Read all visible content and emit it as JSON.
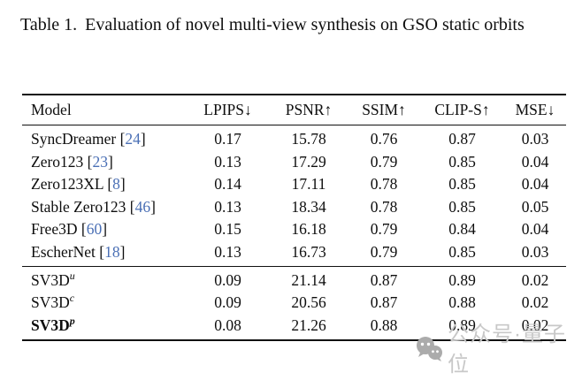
{
  "caption": {
    "label": "Table 1.",
    "text": "Evaluation of novel multi-view synthesis on GSO static orbits"
  },
  "table": {
    "headers": [
      "Model",
      "LPIPS↓",
      "PSNR↑",
      "SSIM↑",
      "CLIP-S↑",
      "MSE↓"
    ],
    "groups": [
      {
        "name": "baselines",
        "rows": [
          {
            "model": "SyncDreamer",
            "cite": "24",
            "sup": "",
            "bold_model": false,
            "values": [
              "0.17",
              "15.78",
              "0.76",
              "0.87",
              "0.03"
            ],
            "bold": [
              false,
              false,
              false,
              false,
              false
            ]
          },
          {
            "model": "Zero123",
            "cite": "23",
            "sup": "",
            "bold_model": false,
            "values": [
              "0.13",
              "17.29",
              "0.79",
              "0.85",
              "0.04"
            ],
            "bold": [
              false,
              false,
              false,
              false,
              false
            ]
          },
          {
            "model": "Zero123XL",
            "cite": "8",
            "sup": "",
            "bold_model": false,
            "values": [
              "0.14",
              "17.11",
              "0.78",
              "0.85",
              "0.04"
            ],
            "bold": [
              false,
              false,
              false,
              false,
              false
            ]
          },
          {
            "model": "Stable Zero123",
            "cite": "46",
            "sup": "",
            "bold_model": false,
            "values": [
              "0.13",
              "18.34",
              "0.78",
              "0.85",
              "0.05"
            ],
            "bold": [
              false,
              false,
              false,
              false,
              false
            ]
          },
          {
            "model": "Free3D",
            "cite": "60",
            "sup": "",
            "bold_model": false,
            "values": [
              "0.15",
              "16.18",
              "0.79",
              "0.84",
              "0.04"
            ],
            "bold": [
              false,
              false,
              false,
              false,
              false
            ]
          },
          {
            "model": "EscherNet",
            "cite": "18",
            "sup": "",
            "bold_model": false,
            "values": [
              "0.13",
              "16.73",
              "0.79",
              "0.85",
              "0.03"
            ],
            "bold": [
              false,
              false,
              false,
              false,
              false
            ]
          }
        ]
      },
      {
        "name": "sv3d-variants",
        "rows": [
          {
            "model": "SV3D",
            "cite": "",
            "sup": "u",
            "bold_model": false,
            "values": [
              "0.09",
              "21.14",
              "0.87",
              "0.89",
              "0.02"
            ],
            "bold": [
              false,
              false,
              false,
              true,
              true
            ]
          },
          {
            "model": "SV3D",
            "cite": "",
            "sup": "c",
            "bold_model": false,
            "values": [
              "0.09",
              "20.56",
              "0.87",
              "0.88",
              "0.02"
            ],
            "bold": [
              false,
              false,
              false,
              false,
              true
            ]
          },
          {
            "model": "SV3D",
            "cite": "",
            "sup": "p",
            "bold_model": true,
            "values": [
              "0.08",
              "21.26",
              "0.88",
              "0.89",
              "0.02"
            ],
            "bold": [
              true,
              true,
              true,
              true,
              true
            ]
          }
        ]
      }
    ]
  },
  "watermark": {
    "text": "公众号·量子位",
    "icon": "wechat-chat-bubbles-icon"
  },
  "colors": {
    "citation_blue": "#4a6fb5",
    "text_black": "#0e0e0e",
    "watermark_gray": "#c8c8c8",
    "background": "#ffffff"
  }
}
